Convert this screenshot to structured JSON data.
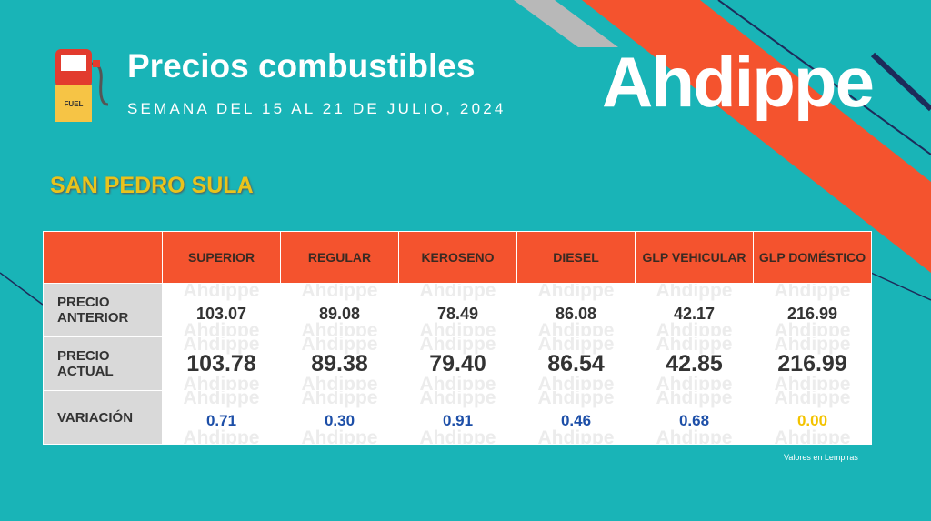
{
  "header": {
    "title": "Precios combustibles",
    "subtitle": "SEMANA DEL 15 AL 21 DE JULIO, 2024",
    "brand": "Ahdippe",
    "icon_label": "FUEL"
  },
  "city": "SAN PEDRO SULA",
  "table": {
    "columns": [
      "SUPERIOR",
      "REGULAR",
      "KEROSENO",
      "DIESEL",
      "GLP VEHICULAR",
      "GLP DOMÉSTICO"
    ],
    "rows": [
      {
        "label": "PRECIO ANTERIOR",
        "values": [
          "103.07",
          "89.08",
          "78.49",
          "86.08",
          "42.17",
          "216.99"
        ]
      },
      {
        "label": "PRECIO ACTUAL",
        "values": [
          "103.78",
          "89.38",
          "79.40",
          "86.54",
          "42.85",
          "216.99"
        ]
      },
      {
        "label": "VARIACIÓN",
        "values": [
          "0.71",
          "0.30",
          "0.91",
          "0.46",
          "0.68",
          "0.00"
        ]
      }
    ]
  },
  "footnote": "Valores en Lempiras"
}
